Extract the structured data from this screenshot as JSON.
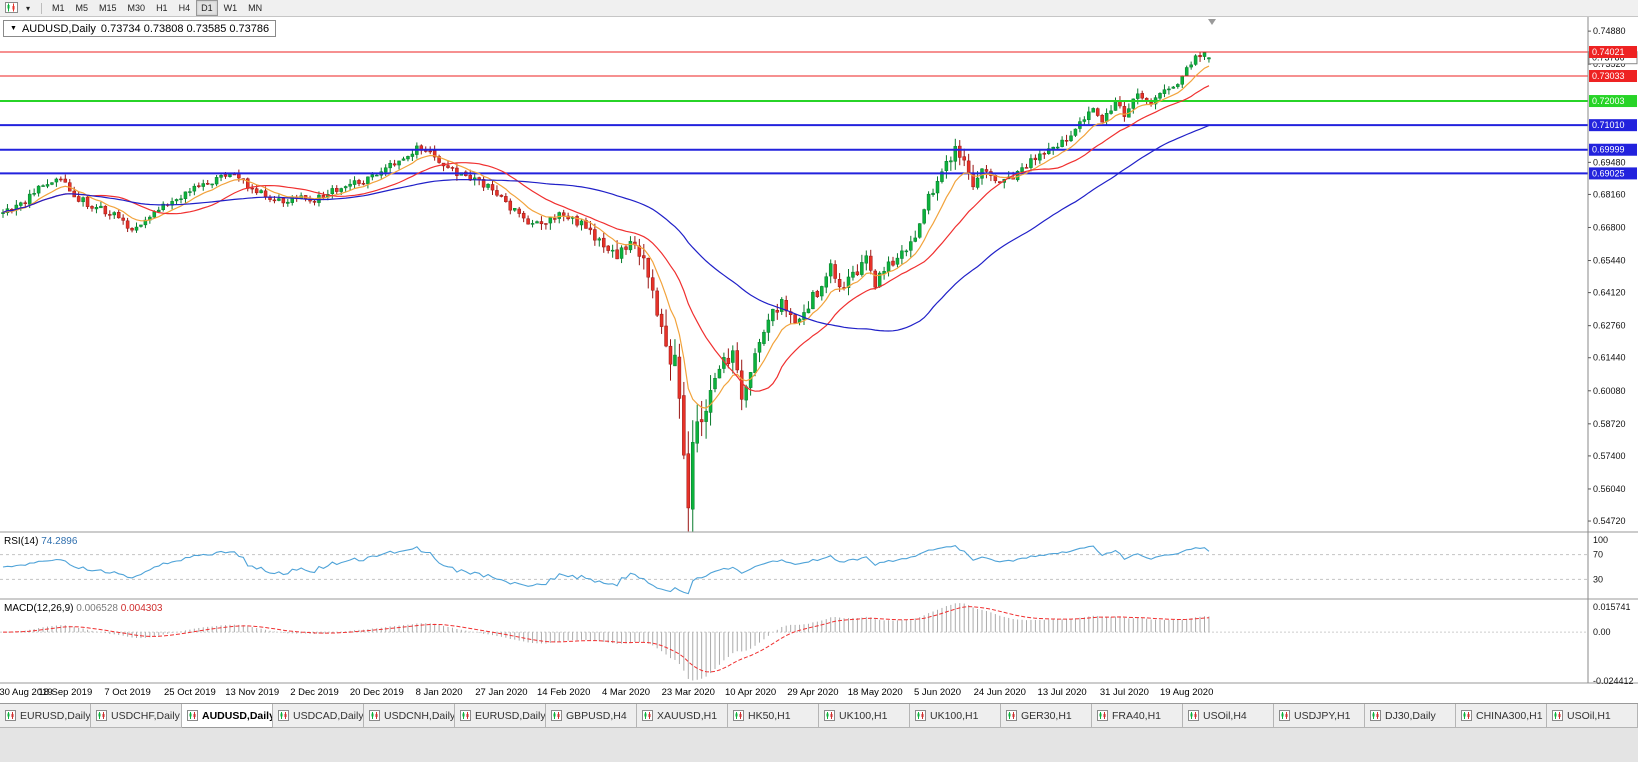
{
  "toolbar": {
    "timeframes": [
      "M1",
      "M5",
      "M15",
      "M30",
      "H1",
      "H4",
      "D1",
      "W1",
      "MN"
    ],
    "active_timeframe": "D1"
  },
  "chart": {
    "title": "AUDUSD,Daily",
    "ohlc_text": "0.73734 0.73808 0.73585 0.73786"
  },
  "chart_data": {
    "type": "candlestick",
    "symbol": "AUDUSD",
    "period": "Daily",
    "last_candle": {
      "open": 0.73734,
      "high": 0.73808,
      "low": 0.73585,
      "close": 0.73786
    },
    "num_candles": 272,
    "candles_per_label": 14,
    "x_labels": [
      "30 Aug 2019",
      "18 Sep 2019",
      "7 Oct 2019",
      "25 Oct 2019",
      "13 Nov 2019",
      "2 Dec 2019",
      "20 Dec 2019",
      "8 Jan 2020",
      "27 Jan 2020",
      "14 Feb 2020",
      "4 Mar 2020",
      "23 Mar 2020",
      "10 Apr 2020",
      "29 Apr 2020",
      "18 May 2020",
      "5 Jun 2020",
      "24 Jun 2020",
      "13 Jul 2020",
      "31 Jul 2020",
      "19 Aug 2020"
    ],
    "y_ticks": [
      0.7488,
      0.7352,
      0.6948,
      0.6816,
      0.668,
      0.6544,
      0.6412,
      0.6276,
      0.6144,
      0.6008,
      0.5872,
      0.574,
      0.5604,
      0.5472
    ],
    "price_scale": {
      "top": 0.7542,
      "bottom": 0.5431
    },
    "bid": 0.73786,
    "h_lines": [
      {
        "price": 0.74021,
        "color": "#ee2222",
        "width": 1
      },
      {
        "price": 0.73033,
        "color": "#ee2222",
        "width": 1
      },
      {
        "price": 0.72003,
        "color": "#27d427",
        "width": 2
      },
      {
        "price": 0.7101,
        "color": "#2222dd",
        "width": 2
      },
      {
        "price": 0.69999,
        "color": "#2222dd",
        "width": 2
      },
      {
        "price": 0.69025,
        "color": "#2222dd",
        "width": 2
      }
    ],
    "up_color": "#0cb23c",
    "down_color": "#e63229",
    "ma_lines": [
      {
        "period": 9,
        "method": "ema",
        "color": "#f2a33c"
      },
      {
        "period": 21,
        "method": "sma",
        "color": "#f03030"
      },
      {
        "period": 55,
        "method": "sma",
        "color": "#2020c8"
      }
    ],
    "anchors": [
      [
        0,
        0.6733
      ],
      [
        4,
        0.6775
      ],
      [
        8,
        0.684
      ],
      [
        12,
        0.6872
      ],
      [
        14,
        0.6855
      ],
      [
        17,
        0.68
      ],
      [
        20,
        0.6765
      ],
      [
        24,
        0.6745
      ],
      [
        27,
        0.6695
      ],
      [
        29,
        0.667
      ],
      [
        32,
        0.672
      ],
      [
        36,
        0.6762
      ],
      [
        40,
        0.6805
      ],
      [
        44,
        0.685
      ],
      [
        48,
        0.688
      ],
      [
        52,
        0.6897
      ],
      [
        55,
        0.6852
      ],
      [
        58,
        0.682
      ],
      [
        62,
        0.6786
      ],
      [
        66,
        0.6802
      ],
      [
        70,
        0.679
      ],
      [
        74,
        0.683
      ],
      [
        78,
        0.6856
      ],
      [
        82,
        0.688
      ],
      [
        86,
        0.6935
      ],
      [
        90,
        0.6962
      ],
      [
        93,
        0.7002
      ],
      [
        96,
        0.699
      ],
      [
        99,
        0.6942
      ],
      [
        103,
        0.6896
      ],
      [
        107,
        0.6866
      ],
      [
        110,
        0.685
      ],
      [
        113,
        0.678
      ],
      [
        117,
        0.6716
      ],
      [
        121,
        0.67
      ],
      [
        125,
        0.6722
      ],
      [
        128,
        0.6706
      ],
      [
        131,
        0.668
      ],
      [
        134,
        0.6622
      ],
      [
        137,
        0.6562
      ],
      [
        140,
        0.6592
      ],
      [
        142,
        0.663
      ],
      [
        145,
        0.6472
      ],
      [
        148,
        0.6302
      ],
      [
        151,
        0.61
      ],
      [
        153,
        0.5762
      ],
      [
        154,
        0.556
      ],
      [
        155,
        0.5792
      ],
      [
        157,
        0.59
      ],
      [
        159,
        0.5962
      ],
      [
        161,
        0.61
      ],
      [
        164,
        0.6172
      ],
      [
        166,
        0.5992
      ],
      [
        169,
        0.6152
      ],
      [
        172,
        0.6302
      ],
      [
        175,
        0.6362
      ],
      [
        178,
        0.6292
      ],
      [
        181,
        0.6362
      ],
      [
        184,
        0.6442
      ],
      [
        186,
        0.6512
      ],
      [
        188,
        0.6422
      ],
      [
        191,
        0.6482
      ],
      [
        194,
        0.6542
      ],
      [
        196,
        0.6452
      ],
      [
        199,
        0.6532
      ],
      [
        202,
        0.6572
      ],
      [
        205,
        0.6652
      ],
      [
        208,
        0.6802
      ],
      [
        211,
        0.6922
      ],
      [
        214,
        0.7002
      ],
      [
        216,
        0.6962
      ],
      [
        218,
        0.6862
      ],
      [
        221,
        0.6922
      ],
      [
        224,
        0.6852
      ],
      [
        227,
        0.6892
      ],
      [
        230,
        0.6942
      ],
      [
        233,
        0.6982
      ],
      [
        236,
        0.7002
      ],
      [
        239,
        0.7042
      ],
      [
        242,
        0.7112
      ],
      [
        245,
        0.7162
      ],
      [
        247,
        0.7122
      ],
      [
        250,
        0.7192
      ],
      [
        252,
        0.7152
      ],
      [
        255,
        0.7222
      ],
      [
        258,
        0.7182
      ],
      [
        261,
        0.7232
      ],
      [
        264,
        0.7262
      ],
      [
        266,
        0.7332
      ],
      [
        268,
        0.7372
      ],
      [
        270,
        0.739
      ],
      [
        271,
        0.7379
      ]
    ],
    "vol_anchors": [
      [
        0,
        0.0045
      ],
      [
        60,
        0.004
      ],
      [
        100,
        0.0045
      ],
      [
        130,
        0.006
      ],
      [
        140,
        0.0085
      ],
      [
        146,
        0.013
      ],
      [
        150,
        0.017
      ],
      [
        154,
        0.022
      ],
      [
        158,
        0.015
      ],
      [
        163,
        0.011
      ],
      [
        170,
        0.009
      ],
      [
        180,
        0.0075
      ],
      [
        195,
        0.0062
      ],
      [
        205,
        0.0065
      ],
      [
        214,
        0.0075
      ],
      [
        222,
        0.0055
      ],
      [
        235,
        0.0048
      ],
      [
        250,
        0.005
      ],
      [
        262,
        0.0048
      ],
      [
        271,
        0.0042
      ]
    ]
  },
  "rsi": {
    "label": "RSI(14)",
    "value": "74.2896",
    "period": 14,
    "levels": [
      70,
      30
    ],
    "axis_labels": [
      "100",
      "70",
      "30"
    ],
    "color": "#4fa3d8"
  },
  "macd": {
    "label": "MACD(12,26,9)",
    "value_main": "0.006528",
    "value_signal": "0.004303",
    "fast": 12,
    "slow": 26,
    "signal": 9,
    "axis_labels": [
      "0.015741",
      "0.00",
      "-0.024412"
    ],
    "ylim": {
      "min": -0.024412,
      "max": 0.015741
    },
    "hist_color": "#ababab",
    "signal_color": "#f03030"
  },
  "tabs": {
    "items": [
      "EURUSD,Daily",
      "USDCHF,Daily",
      "AUDUSD,Daily",
      "USDCAD,Daily",
      "USDCNH,Daily",
      "EURUSD,Daily",
      "GBPUSD,H4",
      "XAUUSD,H1",
      "HK50,H1",
      "UK100,H1",
      "UK100,H1",
      "GER30,H1",
      "FRA40,H1",
      "USOil,H4",
      "USDJPY,H1",
      "DJ30,Daily",
      "CHINA300,H1",
      "USOil,H1"
    ],
    "active_index": 2
  }
}
